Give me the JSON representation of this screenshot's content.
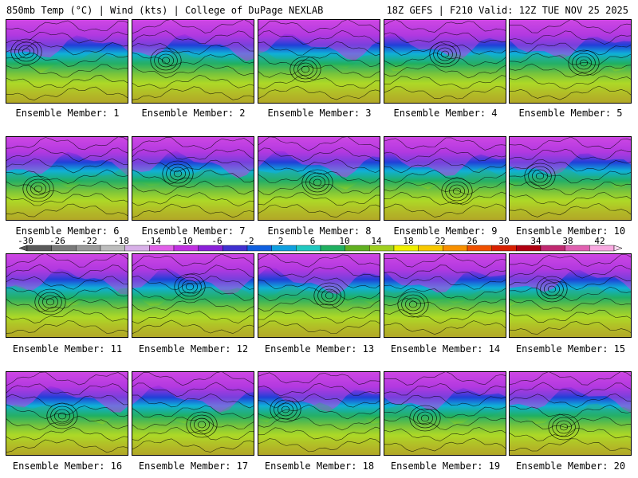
{
  "header": {
    "left": "850mb Temp (°C) | Wind (kts) | College of DuPage NEXLAB",
    "right": "18Z GEFS | F210 Valid: 12Z TUE NOV 25 2025"
  },
  "members": [
    "Ensemble Member: 1",
    "Ensemble Member: 2",
    "Ensemble Member: 3",
    "Ensemble Member: 4",
    "Ensemble Member: 5",
    "Ensemble Member: 6",
    "Ensemble Member: 7",
    "Ensemble Member: 8",
    "Ensemble Member: 9",
    "Ensemble Member: 10",
    "Ensemble Member: 11",
    "Ensemble Member: 12",
    "Ensemble Member: 13",
    "Ensemble Member: 14",
    "Ensemble Member: 15",
    "Ensemble Member: 16",
    "Ensemble Member: 17",
    "Ensemble Member: 18",
    "Ensemble Member: 19",
    "Ensemble Member: 20"
  ],
  "colorbar": {
    "ticks": [
      "-30",
      "-26",
      "-22",
      "-18",
      "-14",
      "-10",
      "-6",
      "-2",
      "2",
      "6",
      "10",
      "14",
      "18",
      "22",
      "26",
      "30",
      "34",
      "38",
      "42"
    ],
    "colors": [
      "#5a5a5a",
      "#7a7a7a",
      "#9a9a9a",
      "#bdbdbd",
      "#d8b0e8",
      "#e060e8",
      "#c030e0",
      "#8a20d8",
      "#4030d0",
      "#1060e0",
      "#10a0e0",
      "#20c8c0",
      "#20b060",
      "#60b020",
      "#a0d020",
      "#f0f000",
      "#f8c800",
      "#f89000",
      "#f05000",
      "#d82000",
      "#b00010",
      "#c02870",
      "#e060b0",
      "#f8a8e0"
    ]
  }
}
